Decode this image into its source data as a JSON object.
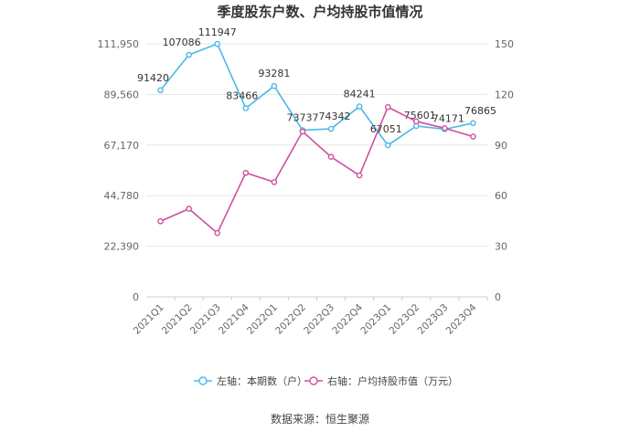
{
  "chart_data": {
    "type": "line",
    "title": "季度股东户数、户均持股市值情况",
    "categories": [
      "2021Q1",
      "2021Q2",
      "2021Q3",
      "2021Q4",
      "2022Q1",
      "2022Q2",
      "2022Q3",
      "2022Q4",
      "2023Q1",
      "2023Q2",
      "2023Q3",
      "2023Q4"
    ],
    "series": [
      {
        "name": "左轴：本期数（户）",
        "axis": "left",
        "color": "#4ab8e8",
        "values": [
          91420,
          107086,
          111947,
          83466,
          93281,
          73737,
          74342,
          84241,
          67051,
          75601,
          74171,
          76865
        ],
        "labels": [
          "91420",
          "107086",
          "111947",
          "83466",
          "93281",
          "73737",
          "74342",
          "84241",
          "67051",
          "75601",
          "74171",
          "76865"
        ]
      },
      {
        "name": "右轴：户均持股市值（万元）",
        "axis": "right",
        "color": "#d04fa0",
        "values": [
          44.8,
          52.2,
          37.8,
          73.5,
          68.0,
          98.0,
          83.0,
          72.0,
          112.5,
          104.0,
          100.0,
          95.0
        ]
      }
    ],
    "y_left": {
      "ticks": [
        "0",
        "22,390",
        "44,780",
        "67,170",
        "89,560",
        "111,950"
      ],
      "min": 0,
      "max": 111950
    },
    "y_right": {
      "ticks": [
        "0",
        "30",
        "60",
        "90",
        "120",
        "150"
      ],
      "min": 0,
      "max": 150
    },
    "legend_position": "bottom",
    "grid": true
  },
  "source": "数据来源：恒生聚源"
}
